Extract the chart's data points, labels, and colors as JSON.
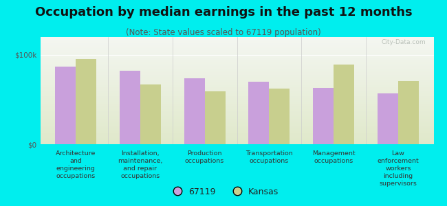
{
  "title": "Occupation by median earnings in the past 12 months",
  "subtitle": "(Note: State values scaled to 67119 population)",
  "categories": [
    "Architecture\nand\nengineering\noccupations",
    "Installation,\nmaintenance,\nand repair\noccupations",
    "Production\noccupations",
    "Transportation\noccupations",
    "Management\noccupations",
    "Law\nenforcement\nworkers\nincluding\nsupervisors"
  ],
  "values_67119": [
    87000,
    82000,
    74000,
    70000,
    63000,
    57000
  ],
  "values_kansas": [
    95000,
    67000,
    59000,
    62000,
    89000,
    71000
  ],
  "color_67119": "#c9a0dc",
  "color_kansas": "#c8cf8e",
  "ylim": [
    0,
    120000
  ],
  "ytick_labels": [
    "$0",
    "$100k"
  ],
  "background_color": "#00eeee",
  "bar_width": 0.32,
  "legend_label_67119": "67119",
  "legend_label_kansas": "Kansas",
  "watermark": "City-Data.com",
  "title_fontsize": 13,
  "subtitle_fontsize": 8.5,
  "tick_fontsize": 7.5,
  "legend_fontsize": 9
}
